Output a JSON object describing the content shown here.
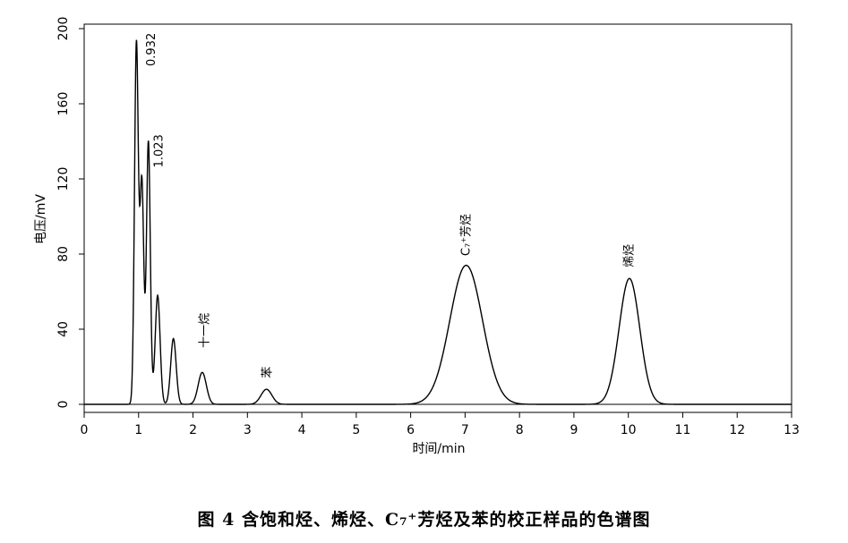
{
  "caption": "图 4 含饱和烃、烯烃、C₇⁺芳烃及苯的校正样品的色谱图",
  "chart_data": {
    "type": "line",
    "title": "",
    "xlabel": "时间/min",
    "ylabel": "电压/mV",
    "xlim": [
      0,
      13
    ],
    "ylim": [
      -2,
      200
    ],
    "xticks": [
      0,
      1,
      2,
      3,
      4,
      5,
      6,
      7,
      8,
      9,
      10,
      11,
      12,
      13
    ],
    "yticks": [
      0,
      40,
      80,
      120,
      160,
      200
    ],
    "grid": false,
    "baseline": 0,
    "peaks": [
      {
        "rt": 0.96,
        "height": 192,
        "width": 0.035
      },
      {
        "rt": 1.06,
        "height": 118,
        "width": 0.035
      },
      {
        "rt": 1.18,
        "height": 140,
        "width": 0.035
      },
      {
        "rt": 1.35,
        "height": 58,
        "width": 0.045
      },
      {
        "rt": 1.64,
        "height": 35,
        "width": 0.05
      },
      {
        "rt": 2.17,
        "height": 17,
        "width": 0.075
      },
      {
        "rt": 3.35,
        "height": 8,
        "width": 0.1
      },
      {
        "rt": 7.02,
        "height": 74,
        "width": 0.3
      },
      {
        "rt": 10.02,
        "height": 67,
        "width": 0.19
      }
    ],
    "annotations": [
      {
        "text": "0.932",
        "x": 1.22,
        "y": 180
      },
      {
        "text": "1.023",
        "x": 1.36,
        "y": 126
      },
      {
        "text": "十一烷",
        "x": 2.2,
        "y": 30
      },
      {
        "text": "苯",
        "x": 3.35,
        "y": 14
      },
      {
        "text": "C₇⁺芳烃",
        "x": 7.0,
        "y": 79
      },
      {
        "text": "烯烃",
        "x": 10.0,
        "y": 73
      }
    ]
  }
}
